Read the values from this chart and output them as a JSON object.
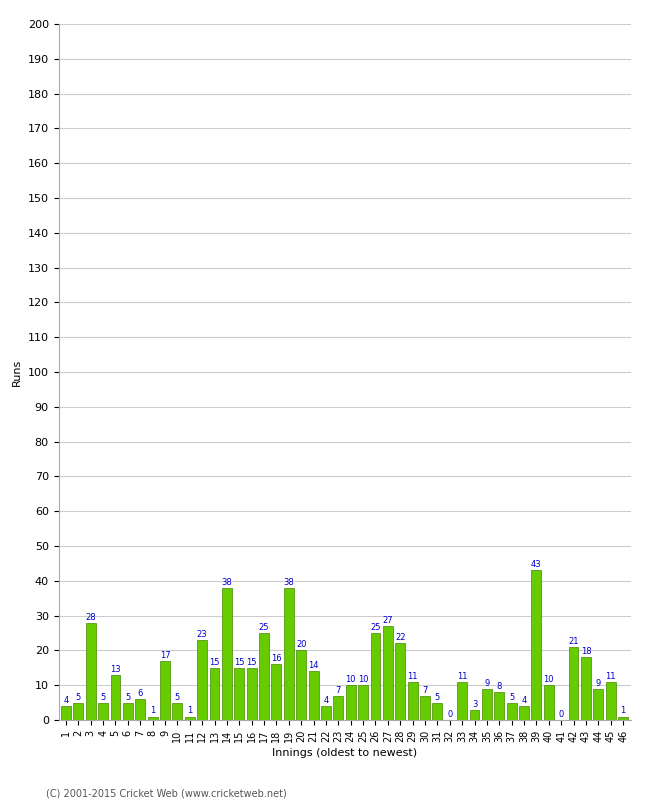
{
  "xlabel": "Innings (oldest to newest)",
  "ylabel": "Runs",
  "values": [
    4,
    5,
    28,
    5,
    13,
    5,
    6,
    1,
    17,
    5,
    1,
    23,
    15,
    38,
    15,
    15,
    25,
    16,
    38,
    20,
    14,
    4,
    7,
    10,
    10,
    25,
    27,
    22,
    11,
    7,
    5,
    0,
    11,
    3,
    9,
    8,
    5,
    4,
    43,
    10,
    0,
    21,
    18,
    9,
    11,
    1
  ],
  "innings": [
    1,
    2,
    3,
    4,
    5,
    6,
    7,
    8,
    9,
    10,
    11,
    12,
    13,
    14,
    15,
    16,
    17,
    18,
    19,
    20,
    21,
    22,
    23,
    24,
    25,
    26,
    27,
    28,
    29,
    30,
    31,
    32,
    33,
    34,
    35,
    36,
    37,
    38,
    39,
    40,
    41,
    42,
    43,
    44,
    45,
    46
  ],
  "bar_color": "#66cc00",
  "bar_edge_color": "#448800",
  "label_color": "#0000cc",
  "bg_color": "#ffffff",
  "plot_bg_color": "#ffffff",
  "grid_color": "#cccccc",
  "ylim": [
    0,
    200
  ],
  "yticks": [
    0,
    10,
    20,
    30,
    40,
    50,
    60,
    70,
    80,
    90,
    100,
    110,
    120,
    130,
    140,
    150,
    160,
    170,
    180,
    190,
    200
  ],
  "label_fontsize": 6.0,
  "axis_fontsize": 8,
  "tick_fontsize": 7,
  "footer": "(C) 2001-2015 Cricket Web (www.cricketweb.net)"
}
